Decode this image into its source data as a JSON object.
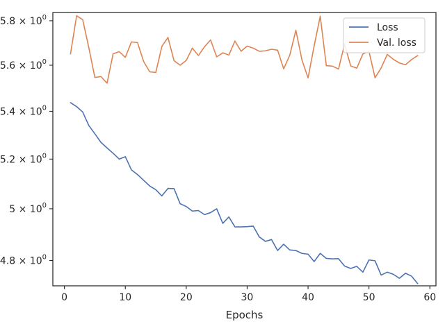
{
  "chart_data": {
    "type": "line",
    "title": "",
    "xlabel": "Epochs",
    "ylabel": "",
    "y_scale": "log",
    "xlim": [
      -1.9,
      61.0
    ],
    "ylim": [
      4.705,
      5.838
    ],
    "x_ticks": [
      0,
      10,
      20,
      30,
      40,
      50,
      60
    ],
    "x_tick_labels": [
      "0",
      "10",
      "20",
      "30",
      "40",
      "50",
      "60"
    ],
    "y_ticks": [
      4.8,
      5.0,
      5.2,
      5.4,
      5.6,
      5.8
    ],
    "y_tick_labels": [
      {
        "mantissa": "4.8",
        "base": "10",
        "exp": "0"
      },
      {
        "mantissa": "5",
        "base": "10",
        "exp": "0"
      },
      {
        "mantissa": "5.2",
        "base": "10",
        "exp": "0"
      },
      {
        "mantissa": "5.4",
        "base": "10",
        "exp": "0"
      },
      {
        "mantissa": "5.6",
        "base": "10",
        "exp": "0"
      },
      {
        "mantissa": "5.8",
        "base": "10",
        "exp": "0"
      }
    ],
    "grid": false,
    "legend_position": "top-right",
    "x": [
      1,
      2,
      3,
      4,
      5,
      6,
      7,
      8,
      9,
      10,
      11,
      12,
      13,
      14,
      15,
      16,
      17,
      18,
      19,
      20,
      21,
      22,
      23,
      24,
      25,
      26,
      27,
      28,
      29,
      30,
      31,
      32,
      33,
      34,
      35,
      36,
      37,
      38,
      39,
      40,
      41,
      42,
      43,
      44,
      45,
      46,
      47,
      48,
      49,
      50,
      51,
      52,
      53,
      54,
      55,
      56,
      57,
      58
    ],
    "series": [
      {
        "name": "Loss",
        "color": "#4c72b0",
        "values": [
          5.437,
          5.42,
          5.397,
          5.34,
          5.305,
          5.269,
          5.246,
          5.224,
          5.2,
          5.21,
          5.156,
          5.137,
          5.114,
          5.091,
          5.076,
          5.051,
          5.081,
          5.08,
          5.02,
          5.009,
          4.991,
          4.993,
          4.977,
          4.985,
          5.0,
          4.943,
          4.968,
          4.929,
          4.929,
          4.93,
          4.932,
          4.89,
          4.873,
          4.88,
          4.838,
          4.862,
          4.84,
          4.838,
          4.827,
          4.824,
          4.796,
          4.827,
          4.808,
          4.806,
          4.807,
          4.779,
          4.77,
          4.778,
          4.756,
          4.802,
          4.799,
          4.745,
          4.756,
          4.748,
          4.733,
          4.752,
          4.741,
          4.713
        ]
      },
      {
        "name": "Val. loss",
        "color": "#dd8452",
        "values": [
          5.65,
          5.823,
          5.805,
          5.679,
          5.546,
          5.55,
          5.521,
          5.651,
          5.66,
          5.635,
          5.704,
          5.701,
          5.617,
          5.571,
          5.568,
          5.684,
          5.724,
          5.62,
          5.6,
          5.621,
          5.676,
          5.643,
          5.682,
          5.713,
          5.637,
          5.655,
          5.645,
          5.708,
          5.662,
          5.685,
          5.676,
          5.662,
          5.664,
          5.671,
          5.667,
          5.584,
          5.645,
          5.757,
          5.623,
          5.544,
          5.686,
          5.821,
          5.598,
          5.596,
          5.583,
          5.694,
          5.597,
          5.587,
          5.65,
          5.662,
          5.545,
          5.588,
          5.648,
          5.626,
          5.61,
          5.602,
          5.625,
          5.643
        ]
      }
    ]
  }
}
